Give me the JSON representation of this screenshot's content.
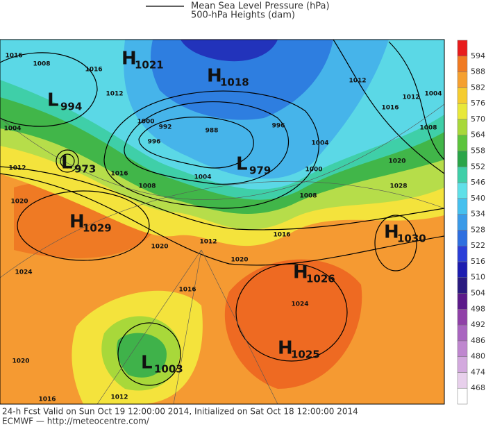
{
  "header": {
    "legend": [
      {
        "label": "Mean Sea Level Pressure (hPa)"
      },
      {
        "label": "500-hPa Heights (dam)"
      }
    ]
  },
  "map": {
    "centers": [
      {
        "letter": "H",
        "value": "1021"
      },
      {
        "letter": "H",
        "value": "1018"
      },
      {
        "letter": "L",
        "value": "994"
      },
      {
        "letter": "L",
        "value": "973"
      },
      {
        "letter": "L",
        "value": "979"
      },
      {
        "letter": "H",
        "value": "1029"
      },
      {
        "letter": "H",
        "value": "1030"
      },
      {
        "letter": "H",
        "value": "1026"
      },
      {
        "letter": "L",
        "value": "1003"
      },
      {
        "letter": "H",
        "value": "1025"
      }
    ],
    "isobar_labels": [
      "1016",
      "1008",
      "1016",
      "1012",
      "1000",
      "992",
      "988",
      "996",
      "1004",
      "1000",
      "1008",
      "1016",
      "1020",
      "1012",
      "1004",
      "1008",
      "996",
      "1016",
      "1004",
      "1012",
      "1020",
      "1024",
      "1020",
      "1016",
      "1020",
      "1016",
      "1012",
      "1024",
      "1020",
      "1028",
      "1016",
      "1012",
      "1012",
      "1004",
      "1008"
    ]
  },
  "colorbar": {
    "levels": [
      "468",
      "474",
      "480",
      "486",
      "492",
      "498",
      "504",
      "510",
      "516",
      "522",
      "528",
      "534",
      "540",
      "546",
      "552",
      "558",
      "564",
      "570",
      "576",
      "582",
      "588",
      "594"
    ],
    "colors": [
      "#ffffff",
      "#e8d0ec",
      "#d3a9de",
      "#bf87cf",
      "#a965c0",
      "#9040a8",
      "#5c1a8a",
      "#2a1a80",
      "#1c1cb0",
      "#2a3ed8",
      "#2e6fe0",
      "#3a9ae8",
      "#46c0ee",
      "#5fe0e8",
      "#3fcfa8",
      "#2aa548",
      "#5cc43c",
      "#a8d83a",
      "#e8e83a",
      "#f5cc30",
      "#f5a030",
      "#f07a22",
      "#e81c1c"
    ]
  },
  "footer": [
    "24-h Fcst Valid on Sun Oct 19 12:00:00 2014, Initialized on Sat Oct 18 12:00:00 2014",
    "ECMWF  — http://meteocentre.com/"
  ]
}
